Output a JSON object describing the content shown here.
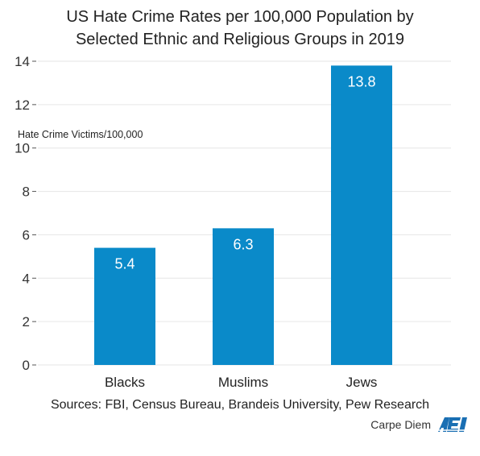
{
  "chart_data": {
    "type": "bar",
    "title": "US Hate Crime Rates per 100,000 Population by",
    "subtitle": "Selected Ethnic and Religious Groups in 2019",
    "ylabel": "Hate Crime Victims/100,000",
    "categories": [
      "Blacks",
      "Muslims",
      "Jews"
    ],
    "values": [
      5.4,
      6.3,
      13.8
    ],
    "data_labels": [
      "5.4",
      "6.3",
      "13.8"
    ],
    "yticks": [
      "0",
      "2",
      "4",
      "6",
      "8",
      "10",
      "12",
      "14"
    ],
    "ylim": [
      0,
      14
    ],
    "grid": true,
    "colors": {
      "bar": "#0a8ac9",
      "grid": "#e6e6e6",
      "label": "#ffffff"
    }
  },
  "footer": {
    "sources": "Sources: FBI, Census Bureau, Brandeis University, Pew Research",
    "brand": "Carpe Diem",
    "logo_text": "AEI"
  }
}
